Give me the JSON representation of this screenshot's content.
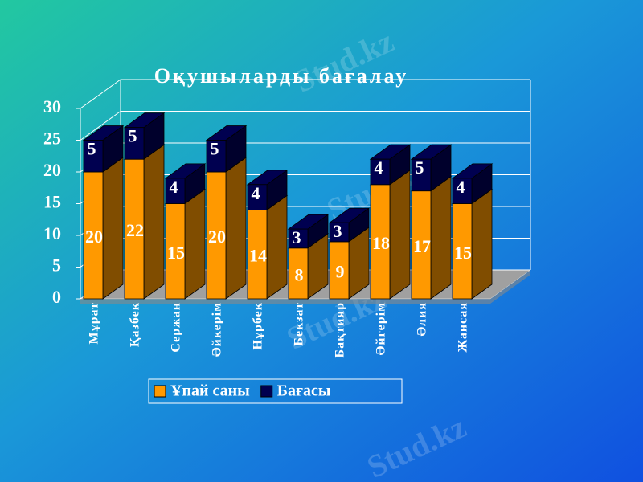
{
  "chart_data": {
    "type": "bar3d_stacked",
    "title": "Оқушыларды бағалау",
    "categories": [
      "Мұрат",
      "Қазбек",
      "Сержан",
      "Әйкерім",
      "Нұрбек",
      "Бекзат",
      "Бақтияр",
      "Әйгерім",
      "Әлия",
      "Жансая"
    ],
    "series": [
      {
        "name": "Ұпай саны",
        "color": "#ff9900",
        "values": [
          20,
          22,
          15,
          20,
          14,
          8,
          9,
          18,
          17,
          15
        ]
      },
      {
        "name": "Бағасы",
        "color": "#000050",
        "values": [
          5,
          5,
          4,
          5,
          4,
          3,
          3,
          4,
          5,
          4
        ]
      }
    ],
    "ylim": [
      0,
      30
    ],
    "yticks": [
      0,
      5,
      10,
      15,
      20,
      25,
      30
    ],
    "grid": true,
    "legend": "bottom"
  },
  "watermark": "Stud.kz"
}
